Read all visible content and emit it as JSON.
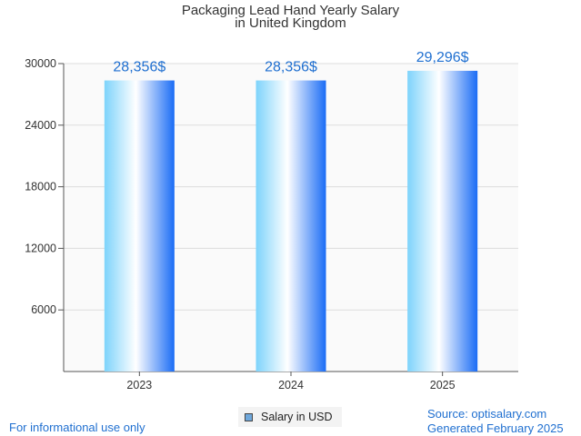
{
  "title_line1": "Packaging Lead Hand Yearly Salary",
  "title_line2": "in United Kingdom",
  "legend_label": "Salary in USD",
  "footer_left": "For informational use only",
  "footer_source": "Source: optisalary.com",
  "footer_generated": "Generated February 2025",
  "colors": {
    "bar_light": "#cfeefe",
    "bar_dark": "#1a6cf5",
    "label": "#1f6fd0",
    "grid": "#dddddd"
  },
  "chart_data": {
    "type": "bar",
    "categories": [
      "2023",
      "2024",
      "2025"
    ],
    "values": [
      28356,
      28356,
      29296
    ],
    "value_labels": [
      "28,356$",
      "28,356$",
      "29,296$"
    ],
    "yticks": [
      "6000",
      "12000",
      "18000",
      "24000",
      "30000"
    ],
    "ylim": [
      0,
      30000
    ],
    "grid": true,
    "legend_position": "bottom"
  }
}
